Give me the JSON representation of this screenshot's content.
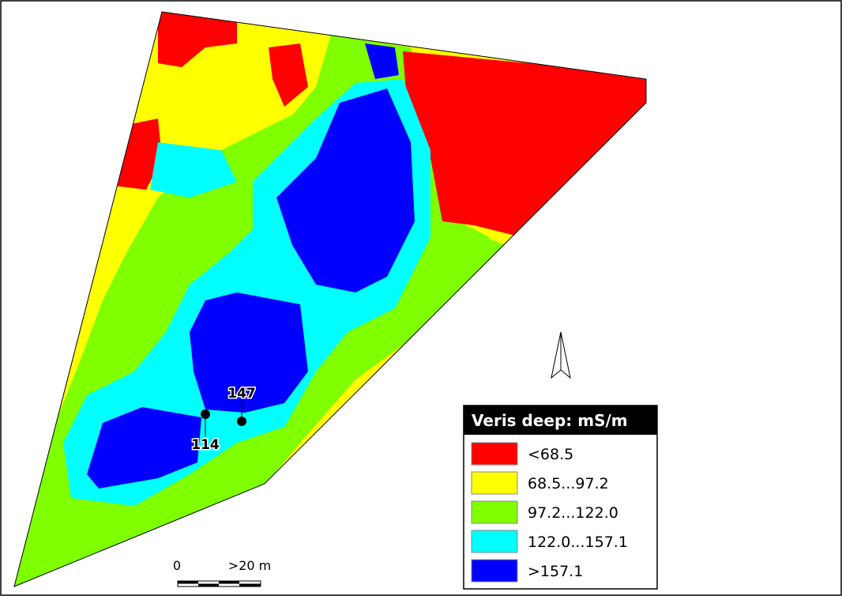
{
  "legend": {
    "title": "Veris deep: mS/m",
    "items": [
      {
        "label": "<68.5",
        "color": "#ff0000"
      },
      {
        "label": "68.5...97.2",
        "color": "#ffff00"
      },
      {
        "label": "97.2...122.0",
        "color": "#7fff00"
      },
      {
        "label": "122.0...157.1",
        "color": "#00ffff"
      },
      {
        "label": ">157.1",
        "color": "#0000ff"
      }
    ]
  },
  "labels": [
    {
      "text": "147"
    },
    {
      "text": "114"
    }
  ],
  "scale_bar": {
    "start": "0",
    "end": ">20 m"
  }
}
